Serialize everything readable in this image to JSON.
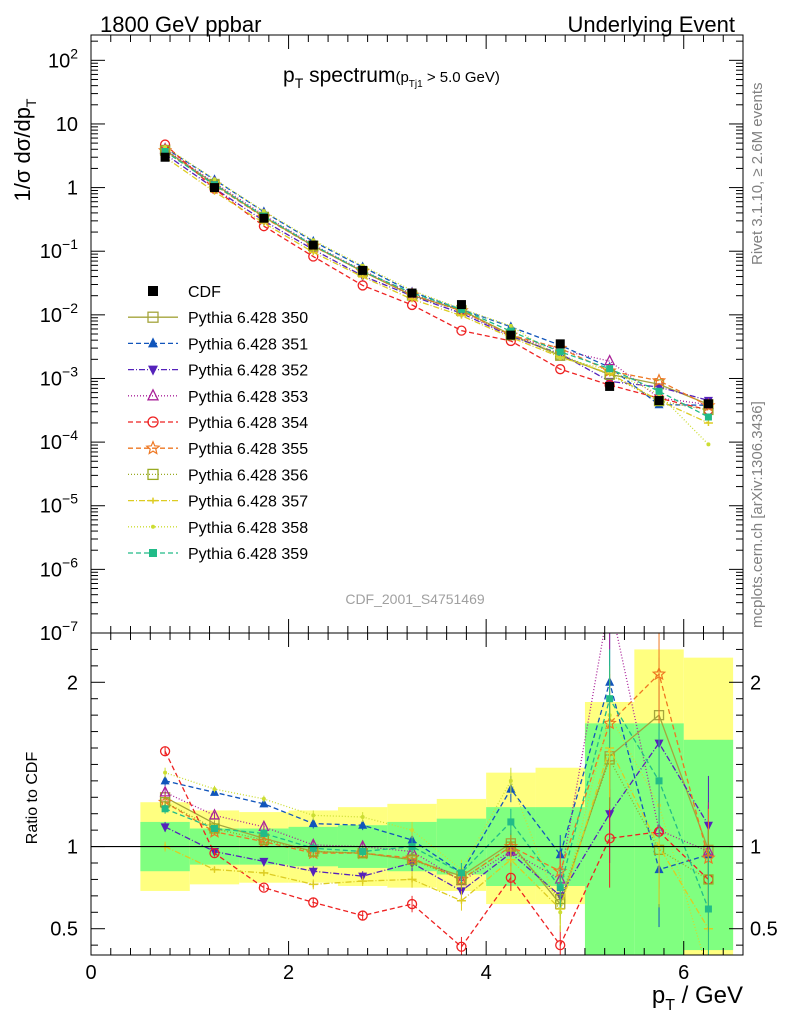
{
  "header": {
    "left": "1800 GeV ppbar",
    "right": "Underlying Event",
    "title_main": "p",
    "title_main_sub": "T",
    "title_main_rest": " spectrum",
    "title_cut_open": "(p",
    "title_cut_sub": "Tj1",
    "title_cut_rest": " > 5.0 GeV)",
    "analysis_id": "CDF_2001_S4751469",
    "side_rivet": "Rivet 3.1.10, ≥ 2.6M events",
    "side_mcplots": "mcplots.cern.ch [arXiv:1306.3436]"
  },
  "colors": {
    "data": "#000000",
    "band_stat": "#80ff80",
    "band_total": "#ffff80",
    "accent_grey": "#808080"
  },
  "chart_data": [
    {
      "type": "line",
      "ylabel": "1/σ dσ/dp_T",
      "ylabel_parts": {
        "main": "1/σ dσ/dp",
        "sub": "T"
      },
      "yscale": "log",
      "ylim": [
        1e-07,
        250
      ],
      "xlim": [
        0,
        6.6
      ],
      "ytick_labels": [
        {
          "v": 1e-07,
          "base": "10",
          "exp": "−7"
        },
        {
          "v": 1e-06,
          "base": "10",
          "exp": "−6"
        },
        {
          "v": 1e-05,
          "base": "10",
          "exp": "−5"
        },
        {
          "v": 0.0001,
          "base": "10",
          "exp": "−4"
        },
        {
          "v": 0.001,
          "base": "10",
          "exp": "−3"
        },
        {
          "v": 0.01,
          "base": "10",
          "exp": "−2"
        },
        {
          "v": 0.1,
          "base": "10",
          "exp": "−1"
        },
        {
          "v": 1,
          "base": "1",
          "exp": ""
        },
        {
          "v": 10,
          "base": "10",
          "exp": ""
        },
        {
          "v": 100,
          "base": "10",
          "exp": "2"
        }
      ],
      "x": [
        0.75,
        1.25,
        1.75,
        2.25,
        2.75,
        3.25,
        3.75,
        4.25,
        4.75,
        5.25,
        5.75,
        6.25
      ],
      "data": {
        "name": "CDF",
        "values": [
          3.0,
          1.0,
          0.33,
          0.125,
          0.05,
          0.022,
          0.0145,
          0.0048,
          0.0035,
          0.00075,
          0.00045,
          0.0004
        ]
      },
      "series": [
        {
          "name": "Pythia 6.428 350",
          "color": "#a5a53c",
          "dash": "",
          "marker": "square-open"
        },
        {
          "name": "Pythia 6.428 351",
          "color": "#1155bb",
          "dash": "5,3",
          "marker": "triangle-up"
        },
        {
          "name": "Pythia 6.428 352",
          "color": "#5522bb",
          "dash": "6,2,1,2",
          "marker": "triangle-down"
        },
        {
          "name": "Pythia 6.428 353",
          "color": "#aa2299",
          "dash": "1,2",
          "marker": "triangle-open"
        },
        {
          "name": "Pythia 6.428 354",
          "color": "#ee2222",
          "dash": "5,3",
          "marker": "circle-open"
        },
        {
          "name": "Pythia 6.428 355",
          "color": "#ee7722",
          "dash": "5,3",
          "marker": "star-open"
        },
        {
          "name": "Pythia 6.428 356",
          "color": "#99aa22",
          "dash": "1,2",
          "marker": "square-open"
        },
        {
          "name": "Pythia 6.428 357",
          "color": "#ddcc22",
          "dash": "6,2,1,2",
          "marker": "tick"
        },
        {
          "name": "Pythia 6.428 358",
          "color": "#ccdd33",
          "dash": "1,2",
          "marker": "dot"
        },
        {
          "name": "Pythia 6.428 359",
          "color": "#22bb88",
          "dash": "5,3",
          "marker": "square-filled"
        }
      ]
    },
    {
      "type": "line",
      "ylabel": "Ratio to CDF",
      "ylim": [
        0.34,
        2.3
      ],
      "xlim": [
        0,
        6.6
      ],
      "xlabel": "p_T / GeV",
      "xlabel_parts": {
        "main": "p",
        "sub": "T",
        "rest": " / GeV"
      },
      "xticks": [
        0,
        2,
        4,
        6
      ],
      "yticks": [
        0.5,
        1,
        2
      ],
      "bin_edges": [
        0.5,
        1.0,
        1.5,
        2.0,
        2.5,
        3.0,
        3.5,
        4.0,
        4.5,
        5.0,
        5.5,
        6.0,
        6.5
      ],
      "band_stat": [
        [
          0.85,
          1.15
        ],
        [
          0.89,
          1.11
        ],
        [
          0.89,
          1.11
        ],
        [
          0.88,
          1.12
        ],
        [
          0.87,
          1.13
        ],
        [
          0.85,
          1.15
        ],
        [
          0.83,
          1.17
        ],
        [
          0.76,
          1.24
        ],
        [
          0.76,
          1.24
        ],
        [
          0.34,
          1.75
        ],
        [
          0.34,
          1.75
        ],
        [
          0.37,
          1.65
        ]
      ],
      "band_total": [
        [
          0.73,
          1.27
        ],
        [
          0.77,
          1.22
        ],
        [
          0.78,
          1.21
        ],
        [
          0.78,
          1.22
        ],
        [
          0.76,
          1.24
        ],
        [
          0.75,
          1.26
        ],
        [
          0.73,
          1.29
        ],
        [
          0.65,
          1.45
        ],
        [
          0.65,
          1.48
        ],
        [
          0.55,
          1.88
        ],
        [
          0.34,
          2.2
        ],
        [
          0.34,
          2.15
        ]
      ],
      "ratios": [
        [
          1.3,
          1.14,
          1.05,
          0.97,
          0.96,
          0.92,
          0.82,
          1.02,
          0.65,
          1.55,
          1.8,
          0.98
        ],
        [
          1.4,
          1.33,
          1.26,
          1.14,
          1.13,
          1.04,
          0.84,
          1.35,
          0.95,
          2.0,
          0.86,
          0.95
        ],
        [
          1.12,
          0.97,
          0.91,
          0.85,
          0.82,
          0.9,
          0.73,
          0.96,
          0.7,
          1.2,
          1.63,
          1.13
        ],
        [
          1.33,
          1.19,
          1.12,
          1.01,
          1.0,
          0.97,
          0.79,
          0.97,
          0.8,
          2.5,
          1.1,
          0.97
        ],
        [
          1.58,
          0.96,
          0.75,
          0.66,
          0.58,
          0.65,
          0.39,
          0.81,
          0.4,
          1.05,
          1.09,
          0.8
        ],
        [
          1.27,
          1.09,
          1.03,
          0.96,
          0.96,
          0.93,
          0.8,
          1.0,
          0.85,
          1.75,
          2.05,
          0.93
        ],
        [
          1.27,
          1.11,
          1.04,
          0.97,
          0.96,
          0.92,
          0.8,
          1.0,
          0.68,
          1.53,
          0.98,
          0.8
        ],
        [
          1.0,
          0.86,
          0.84,
          0.77,
          0.79,
          0.8,
          0.67,
          0.92,
          0.62,
          1.6,
          1.0,
          0.5
        ],
        [
          1.45,
          1.35,
          1.29,
          1.19,
          1.18,
          1.1,
          0.86,
          1.4,
          0.6,
          1.8,
          1.25,
          0.23
        ],
        [
          1.23,
          1.11,
          1.08,
          0.99,
          0.97,
          1.0,
          0.84,
          1.15,
          0.75,
          1.9,
          1.4,
          0.62
        ]
      ],
      "ratio_err": [
        0.03,
        0.02,
        0.02,
        0.03,
        0.03,
        0.05,
        0.06,
        0.08,
        0.12,
        0.3,
        0.35,
        0.3
      ]
    }
  ]
}
